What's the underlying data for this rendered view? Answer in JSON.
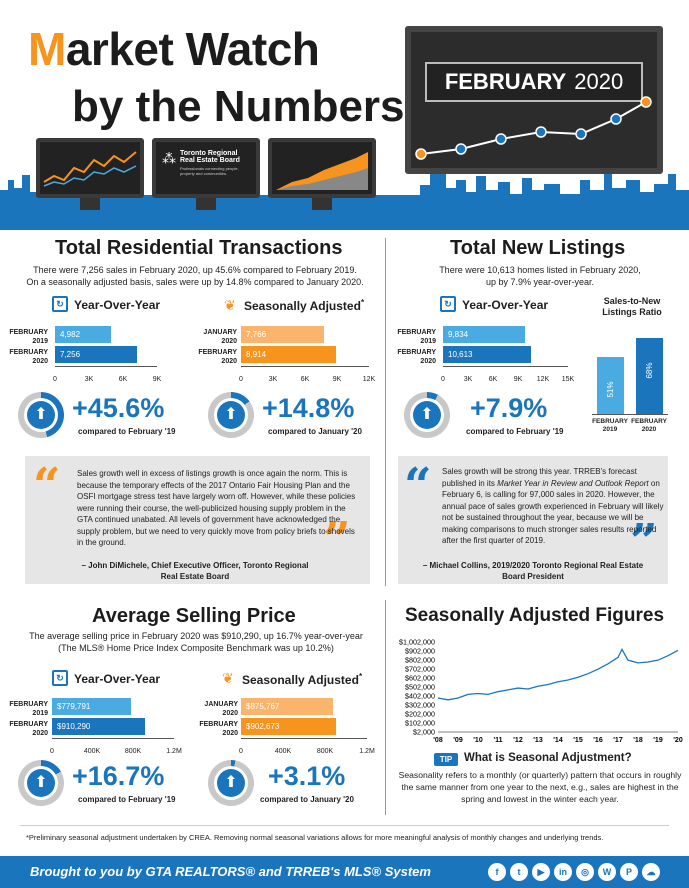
{
  "header": {
    "title_m": "M",
    "title_rest": "arket Watch",
    "subtitle": "by the Numbers",
    "month_label": "FEBRUARY",
    "year_label": "2020",
    "trreb_logo_line1": "Toronto Regional",
    "trreb_logo_line2": "Real Estate Board",
    "trreb_logo_tag": "Professionals connecting people, property and communities."
  },
  "transactions": {
    "title": "Total Residential Transactions",
    "desc_line1": "There were 7,256 sales in February 2020, up 45.6% compared to February 2019.",
    "desc_line2": "On a seasonally adjusted basis, sales were up by 14.8% compared to January 2020.",
    "yoy": {
      "heading": "Year-Over-Year",
      "rows": [
        {
          "label": "FEBRUARY 2019",
          "value": 4982,
          "display": "4,982"
        },
        {
          "label": "FEBRUARY 2020",
          "value": 7256,
          "display": "7,256"
        }
      ],
      "ticks": [
        "0",
        "3K",
        "6K",
        "9K"
      ],
      "max": 9000,
      "pct": "+45.6%",
      "ring_fraction": 0.456,
      "compare": "compared to February '19"
    },
    "sa": {
      "heading": "Seasonally Adjusted",
      "asterisk": "*",
      "rows": [
        {
          "label": "JANUARY 2020",
          "value": 7766,
          "display": "7,766"
        },
        {
          "label": "FEBRUARY 2020",
          "value": 8914,
          "display": "8,914"
        }
      ],
      "ticks": [
        "0",
        "3K",
        "6K",
        "9K",
        "12K"
      ],
      "max": 12000,
      "pct": "+14.8%",
      "ring_fraction": 0.148,
      "compare": "compared to January '20"
    }
  },
  "listings": {
    "title": "Total New Listings",
    "desc_line1": "There were 10,613 homes listed in February 2020,",
    "desc_line2": "up by 7.9% year-over-year.",
    "yoy": {
      "heading": "Year-Over-Year",
      "rows": [
        {
          "label": "FEBRUARY 2019",
          "value": 9834,
          "display": "9,834"
        },
        {
          "label": "FEBRUARY 2020",
          "value": 10613,
          "display": "10,613"
        }
      ],
      "ticks": [
        "0",
        "3K",
        "6K",
        "9K",
        "12K",
        "15K"
      ],
      "max": 15000,
      "pct": "+7.9%",
      "ring_fraction": 0.079,
      "compare": "compared to February '19"
    },
    "ratio": {
      "heading_line1": "Sales-to-New",
      "heading_line2": "Listings Ratio",
      "bars": [
        {
          "label_line1": "FEBRUARY",
          "label_line2": "2019",
          "value": 51,
          "display": "51%"
        },
        {
          "label_line1": "FEBRUARY",
          "label_line2": "2020",
          "value": 68,
          "display": "68%"
        }
      ]
    }
  },
  "quote_left": {
    "text_pre": "Sales growth well in excess of listings growth is once again the norm. This is because the temporary effects of the 2017 Ontario Fair Housing Plan and the OSFI mortgage stress test have largely worn off. However, while these policies were running their course, the well-publicized housing supply problem in the GTA continued unabated. All levels of government have acknowledged the supply problem, but we need to very quickly move from policy briefs to shovels in the ground.",
    "attr_line1": "– John DiMichele, Chief Executive Officer, Toronto Regional",
    "attr_line2": "Real Estate Board"
  },
  "quote_right": {
    "text_a": "Sales growth will be strong this year. TRREB's forecast published in its ",
    "text_italic": "Market Year in Review and Outlook Report",
    "text_b": " on February 6, is calling for 97,000 sales in 2020. However, the annual pace of sales growth experienced in February will likely not be sustained throughout the year, because we will be making comparisons to much stronger sales results reported after the first quarter of 2019.",
    "attr_line1": "– Michael Collins, 2019/2020 Toronto Regional Real Estate",
    "attr_line2": "Board President"
  },
  "price": {
    "title": "Average Selling Price",
    "desc_line1": "The average selling price in February 2020 was $910,290, up 16.7% year-over-year",
    "desc_line2": "(The MLS® Home Price Index Composite Benchmark was up 10.2%)",
    "yoy": {
      "heading": "Year-Over-Year",
      "rows": [
        {
          "label": "FEBRUARY 2019",
          "value": 779791,
          "display": "$779,791"
        },
        {
          "label": "FEBRUARY 2020",
          "value": 910290,
          "display": "$910,290"
        }
      ],
      "ticks": [
        "0",
        "400K",
        "800K",
        "1.2M"
      ],
      "max": 1200000,
      "pct": "+16.7%",
      "ring_fraction": 0.167,
      "compare": "compared to February '19"
    },
    "sa": {
      "heading": "Seasonally Adjusted",
      "asterisk": "*",
      "rows": [
        {
          "label": "JANUARY 2020",
          "value": 875767,
          "display": "$875,767"
        },
        {
          "label": "FEBRUARY 2020",
          "value": 902673,
          "display": "$902,673"
        }
      ],
      "ticks": [
        "0",
        "400K",
        "800K",
        "1.2M"
      ],
      "max": 1200000,
      "pct": "+3.1%",
      "ring_fraction": 0.031,
      "compare": "compared to January '20"
    }
  },
  "sa_figures": {
    "title": "Seasonally Adjusted Figures",
    "chart_data": {
      "type": "line",
      "y_ticks": [
        "$1,002,000",
        "$902,000",
        "$802,000",
        "$702,000",
        "$602,000",
        "$502,000",
        "$402,000",
        "$302,000",
        "$202,000",
        "$102,000",
        "$2,000"
      ],
      "ylim": [
        2000,
        1002000
      ],
      "x_ticks": [
        "'08",
        "'09",
        "'10",
        "'11",
        "'12",
        "'13",
        "'14",
        "'15",
        "'16",
        "'17",
        "'18",
        "'19",
        "'20"
      ],
      "x": [
        2008.0,
        2008.5,
        2009.0,
        2009.5,
        2010.0,
        2010.5,
        2011.0,
        2011.5,
        2012.0,
        2012.5,
        2013.0,
        2013.5,
        2014.0,
        2014.5,
        2015.0,
        2015.5,
        2016.0,
        2016.5,
        2017.0,
        2017.2,
        2017.5,
        2018.0,
        2018.5,
        2019.0,
        2019.5,
        2020.0
      ],
      "values": [
        380000,
        360000,
        380000,
        420000,
        430000,
        420000,
        450000,
        470000,
        490000,
        480000,
        510000,
        530000,
        560000,
        580000,
        610000,
        650000,
        700000,
        760000,
        830000,
        920000,
        800000,
        770000,
        780000,
        800000,
        850000,
        910000
      ]
    },
    "tip_badge": "TIP",
    "tip_title": "What is Seasonal Adjustment?",
    "tip_text": "Seasonality refers to a monthly (or quarterly) pattern that occurs in roughly the same manner from one year to the next, e.g., sales are highest in the spring and lowest in the winter each year."
  },
  "footnote": "*Preliminary seasonal adjustment undertaken by CREA. Removing normal seasonal variations allows for more meaningful analysis of monthly changes and underlying trends.",
  "footer": {
    "text": "Brought to you by GTA REALTORS® and TRREB's MLS® System",
    "icons": [
      "facebook-icon",
      "twitter-icon",
      "youtube-icon",
      "linkedin-icon",
      "instagram-icon",
      "wordpress-icon",
      "pinterest-icon",
      "soundcloud-icon"
    ],
    "glyphs": [
      "f",
      "t",
      "▶",
      "in",
      "◎",
      "W",
      "P",
      "☁"
    ]
  },
  "colors": {
    "blue": "#1a75bc",
    "light_blue": "#4aabe2",
    "orange": "#f7941d",
    "light_orange": "#fbb46b",
    "gray": "#c8c8c8"
  }
}
